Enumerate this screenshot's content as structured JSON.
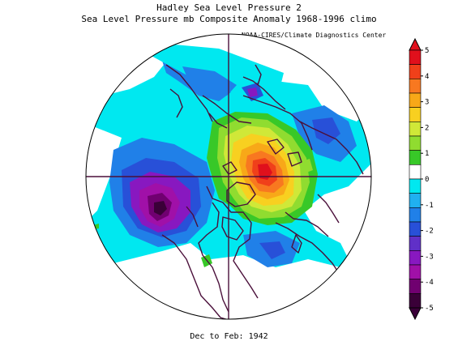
{
  "title": "Hadley Sea Level Pressure 2",
  "subtitle": "Sea Level Pressure mb Composite Anomaly 1968-1996 climo",
  "credit": "NOAA-CIRES/Climate Diagnostics Center",
  "period": "Dec to Feb: 1942",
  "colorbar": {
    "min": -5,
    "max": 5,
    "tick_labels": [
      "5",
      "4",
      "3",
      "2",
      "1",
      "0",
      "-1",
      "-2",
      "-3",
      "-4",
      "-5"
    ],
    "colors_top_to_bottom": [
      "#e0101c",
      "#f0401a",
      "#f87820",
      "#f8a818",
      "#f8d020",
      "#d0e838",
      "#90dc30",
      "#38c828",
      "#ffffff",
      "#00e8f0",
      "#20b0f0",
      "#2080e8",
      "#2850d8",
      "#6030c8",
      "#8818c0",
      "#a010a8",
      "#700070",
      "#3a0038"
    ]
  }
}
